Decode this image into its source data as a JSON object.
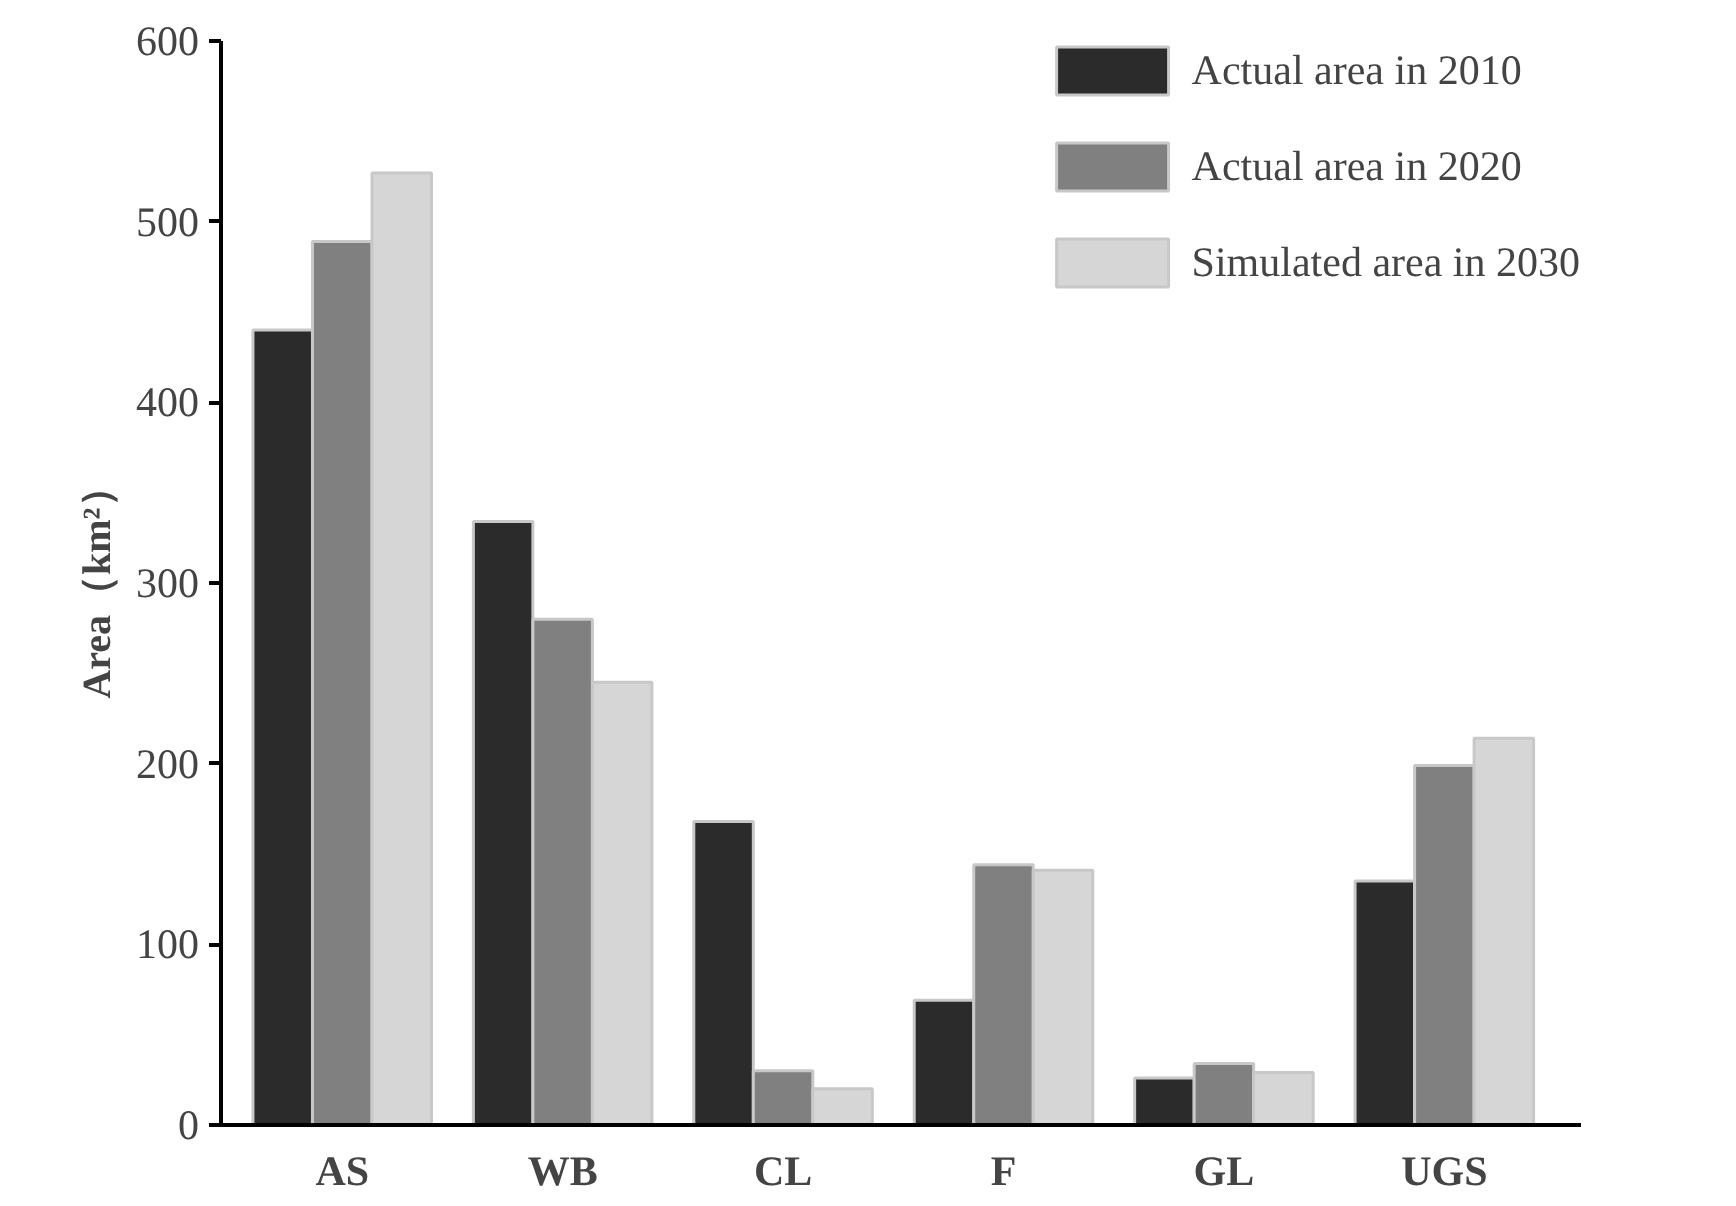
{
  "chart_data": {
    "type": "bar",
    "ylabel": "Area（km²）",
    "categories": [
      "AS",
      "WB",
      "CL",
      "F",
      "GL",
      "UGS"
    ],
    "series": [
      {
        "name": "Actual area in 2010",
        "color": "#2b2b2b",
        "values": [
          440,
          334,
          168,
          69,
          26,
          135
        ]
      },
      {
        "name": "Actual area in 2020",
        "color": "#808080",
        "values": [
          489,
          280,
          30,
          144,
          34,
          199
        ]
      },
      {
        "name": "Simulated area in 2030",
        "color": "#d6d6d6",
        "values": [
          527,
          245,
          20,
          141,
          29,
          214
        ]
      }
    ],
    "ylim": [
      0,
      600
    ],
    "yticks": [
      0,
      100,
      200,
      300,
      400,
      500,
      600
    ],
    "grid": false,
    "legend": "top right"
  }
}
